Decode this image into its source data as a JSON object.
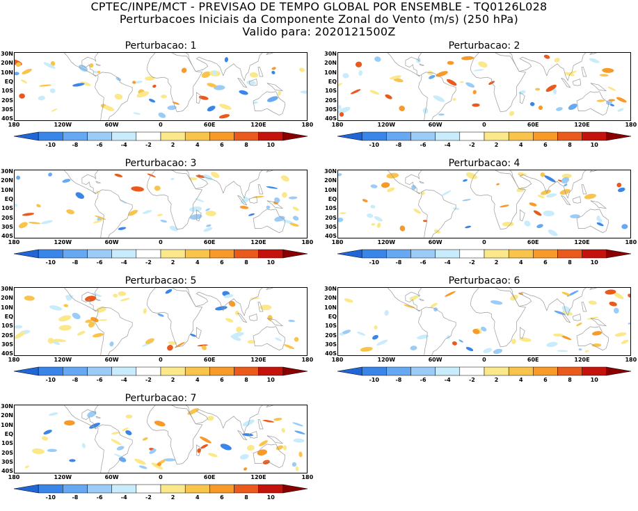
{
  "header": {
    "line1": "CPTEC/INPE/MCT - PREVISAO DE TEMPO GLOBAL POR ENSEMBLE - TQ0126L028",
    "line2": "Perturbacoes Iniciais da Componente Zonal do Vento (m/s) (250 hPa)",
    "line3": "Valido para: 2020121500Z"
  },
  "lat_labels": [
    "30N",
    "20N",
    "10N",
    "EQ",
    "10S",
    "20S",
    "30S",
    "40S"
  ],
  "lon_labels": [
    "180",
    "120W",
    "60W",
    "0",
    "60E",
    "120E",
    "180"
  ],
  "colorbar": {
    "labels": [
      "-10",
      "-8",
      "-6",
      "-4",
      "-2",
      "2",
      "4",
      "6",
      "8",
      "10"
    ],
    "colors": [
      "#2166d6",
      "#3a86e8",
      "#66a9f2",
      "#9bccf7",
      "#c8ecfb",
      "#ffffff",
      "#fbe88a",
      "#f9c44b",
      "#f79a2a",
      "#ea5a1d",
      "#c4120c",
      "#8a0000"
    ]
  },
  "panels": [
    {
      "title": "Perturbacao: 1"
    },
    {
      "title": "Perturbacao: 2"
    },
    {
      "title": "Perturbacao: 3"
    },
    {
      "title": "Perturbacao: 4"
    },
    {
      "title": "Perturbacao: 5"
    },
    {
      "title": "Perturbacao: 6"
    },
    {
      "title": "Perturbacao: 7"
    }
  ]
}
